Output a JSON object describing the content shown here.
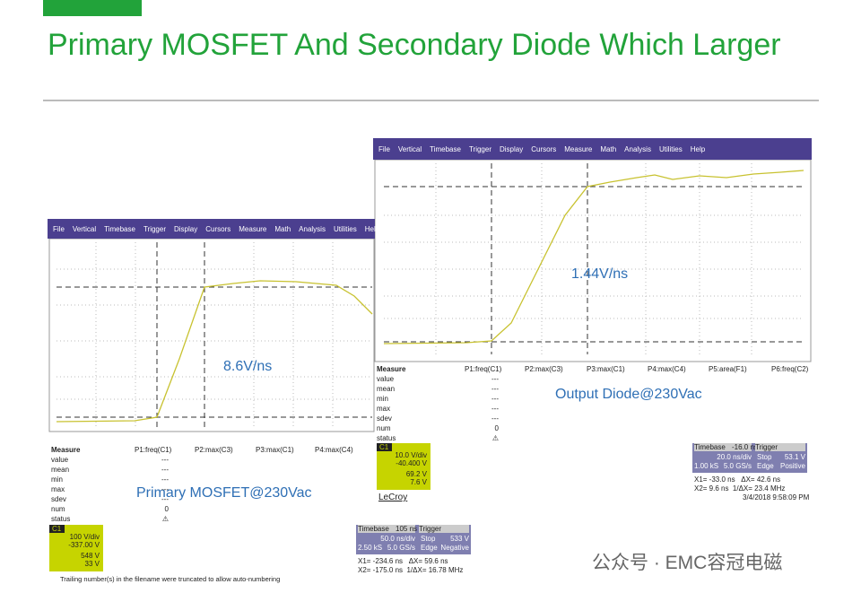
{
  "header": {
    "title": "Primary MOSFET And Secondary Diode Which Larger"
  },
  "scope_left": {
    "menu": [
      "File",
      "Vertical",
      "Timebase",
      "Trigger",
      "Display",
      "Cursors",
      "Measure",
      "Math",
      "Analysis",
      "Utilities",
      "Help"
    ],
    "rate_label": "8.6V/ns",
    "caption": "Primary MOSFET@230Vac",
    "measure_header": [
      "Measure",
      "P1:freq(C1)",
      "P2:max(C3)",
      "P3:max(C1)",
      "P4:max(C4)"
    ],
    "measure_rows": [
      "value",
      "mean",
      "min",
      "max",
      "sdev",
      "num",
      "status"
    ],
    "measure_values": [
      "---",
      "---",
      "---",
      "---",
      "---",
      "0",
      "⚠"
    ],
    "channel": {
      "name": "C1",
      "scale": "100 V/div",
      "offset": "-337.00 V",
      "v1": "548 V",
      "v2": "33 V"
    },
    "timebase": {
      "label": "Timebase",
      "value": "105 ns",
      "div": "50.0 ns/div",
      "samples": "2.50 kS",
      "rate": "5.0 GS/s"
    },
    "trigger": {
      "label": "Trigger",
      "mode": "Stop",
      "level": "533 V",
      "type": "Edge",
      "slope": "Negative"
    },
    "cursors": [
      "X1= -234.6 ns   ΔX= 59.6 ns",
      "X2= -175.0 ns  1/ΔX= 16.78 MHz"
    ],
    "footnote": "Trailing number(s) in the filename were truncated to allow auto-numbering"
  },
  "scope_right": {
    "menu": [
      "File",
      "Vertical",
      "Timebase",
      "Trigger",
      "Display",
      "Cursors",
      "Measure",
      "Math",
      "Analysis",
      "Utilities",
      "Help"
    ],
    "rate_label": "1.44V/ns",
    "caption": "Output Diode@230Vac",
    "measure_header": [
      "Measure",
      "P1:freq(C1)",
      "P2:max(C3)",
      "P3:max(C1)",
      "P4:max(C4)",
      "P5:area(F1)",
      "P6:freq(C2)"
    ],
    "measure_rows": [
      "value",
      "mean",
      "min",
      "max",
      "sdev",
      "num",
      "status"
    ],
    "measure_values": [
      "---",
      "---",
      "---",
      "---",
      "---",
      "0",
      "⚠"
    ],
    "channel": {
      "name": "C1",
      "scale": "10.0 V/div",
      "offset": "-40.400 V",
      "v1": "69.2 V",
      "v2": "7.6 V"
    },
    "brand": "LeCroy",
    "timebase": {
      "label": "Timebase",
      "value": "-16.0 ns",
      "div": "20.0 ns/div",
      "samples": "1.00 kS",
      "rate": "5.0 GS/s"
    },
    "trigger": {
      "label": "Trigger",
      "mode": "Stop",
      "level": "53.1 V",
      "type": "Edge",
      "slope": "Positive"
    },
    "cursors": [
      "X1= -33.0 ns   ΔX= 42.6 ns",
      "X2= 9.6 ns  1/ΔX= 23.4 MHz"
    ],
    "date": "3/4/2018 9:58:09 PM"
  },
  "watermark": "公众号 · EMC容冠电磁"
}
